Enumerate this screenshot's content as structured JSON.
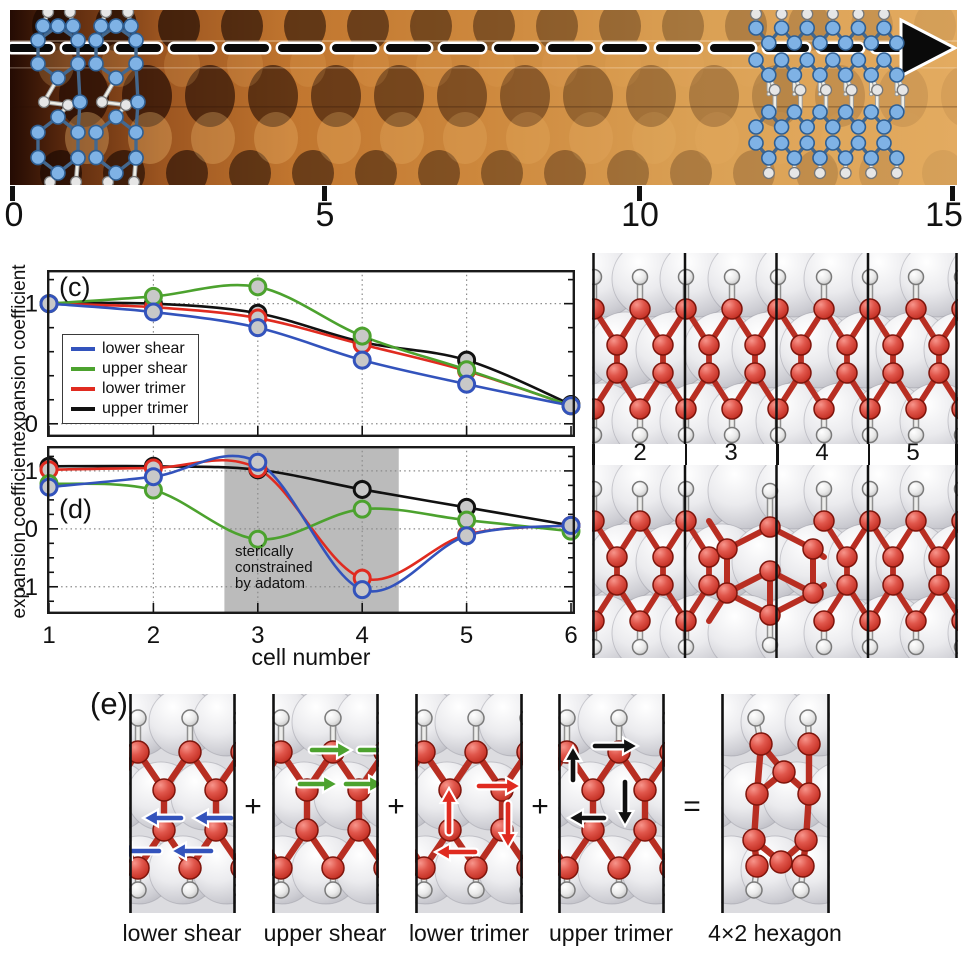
{
  "stm": {
    "scale_ticks": [
      "0",
      "5",
      "10",
      "15"
    ],
    "arrow_icon": "linescan-arrow-icon",
    "overlay_left_icon": "compressed-molecule-overlay",
    "overlay_right_icon": "relaxed-lattice-overlay"
  },
  "charts": {
    "shared_xlabel": "cell number"
  },
  "chart_data": [
    {
      "type": "line",
      "panel": "(c)",
      "ylabel": "expansion coefficient",
      "x": [
        1,
        2,
        3,
        4,
        5,
        6
      ],
      "series": [
        {
          "name": "lower shear",
          "color": "#3353bc",
          "values": [
            1.0,
            0.93,
            0.8,
            0.53,
            0.33,
            0.15
          ]
        },
        {
          "name": "upper shear",
          "color": "#4ca22e",
          "values": [
            1.0,
            1.06,
            1.14,
            0.73,
            0.45,
            0.15
          ]
        },
        {
          "name": "lower trimer",
          "color": "#e02b20",
          "values": [
            1.0,
            0.97,
            0.88,
            0.66,
            0.44,
            0.15
          ]
        },
        {
          "name": "upper trimer",
          "color": "#111111",
          "values": [
            1.0,
            1.0,
            0.92,
            0.68,
            0.53,
            0.16
          ]
        }
      ],
      "ylim": [
        -0.11,
        1.28
      ],
      "yticks": [
        0,
        1
      ],
      "minor_step": 0.2,
      "xgrid": [
        2,
        3,
        4,
        5
      ],
      "grid": "dotted",
      "legend_position": "left-middle"
    },
    {
      "type": "line",
      "panel": "(d)",
      "ylabel": "expansion coefficient",
      "xlabel": "cell number",
      "x": [
        1,
        2,
        3,
        4,
        5,
        6
      ],
      "series": [
        {
          "name": "lower shear",
          "color": "#3353bc",
          "values": [
            0.72,
            0.9,
            1.15,
            -1.05,
            -0.12,
            0.06
          ]
        },
        {
          "name": "upper shear",
          "color": "#4ca22e",
          "values": [
            0.78,
            0.67,
            -0.18,
            0.34,
            0.15,
            -0.04
          ]
        },
        {
          "name": "lower trimer",
          "color": "#e02b20",
          "values": [
            1.02,
            1.05,
            1.04,
            -0.85,
            -0.1,
            0.06
          ]
        },
        {
          "name": "upper trimer",
          "color": "#111111",
          "values": [
            1.08,
            1.08,
            1.02,
            0.68,
            0.37,
            0.06
          ]
        }
      ],
      "ylim": [
        -1.47,
        1.43
      ],
      "yticks": [
        -1,
        0,
        1
      ],
      "minor_step": 0.25,
      "xgrid": [
        2,
        3,
        4,
        5
      ],
      "xticks": [
        1,
        2,
        3,
        4,
        5,
        6
      ],
      "grid": "dotted",
      "shaded_region": {
        "x0": 2.68,
        "x1": 4.35,
        "color": "#bbbbbb",
        "label": "sterically constrained by adatom"
      },
      "annotation_lines": [
        "sterically",
        "constrained",
        "by adatom"
      ]
    }
  ],
  "structures": {
    "cell_labels": [
      "2",
      "3",
      "4",
      "5"
    ]
  },
  "panel_e": {
    "label": "(e)",
    "items": [
      {
        "label": "lower shear",
        "variant": "lower-shear",
        "arrow_color": "#3353bc",
        "arrow_icon": "left-arrow-icon"
      },
      {
        "label": "upper shear",
        "variant": "upper-shear",
        "arrow_color": "#4ca22e",
        "arrow_icon": "right-arrow-icon"
      },
      {
        "label": "lower trimer",
        "variant": "lower-trimer",
        "arrow_color": "#e02b20",
        "arrow_icon": "trimer-arrows-icon"
      },
      {
        "label": "upper trimer",
        "variant": "upper-trimer",
        "arrow_color": "#111111",
        "arrow_icon": "trimer-arrows-icon"
      },
      {
        "label": "4×2 hexagon",
        "variant": "hexagon"
      }
    ],
    "operators": [
      "+",
      "+",
      "+",
      "="
    ]
  }
}
